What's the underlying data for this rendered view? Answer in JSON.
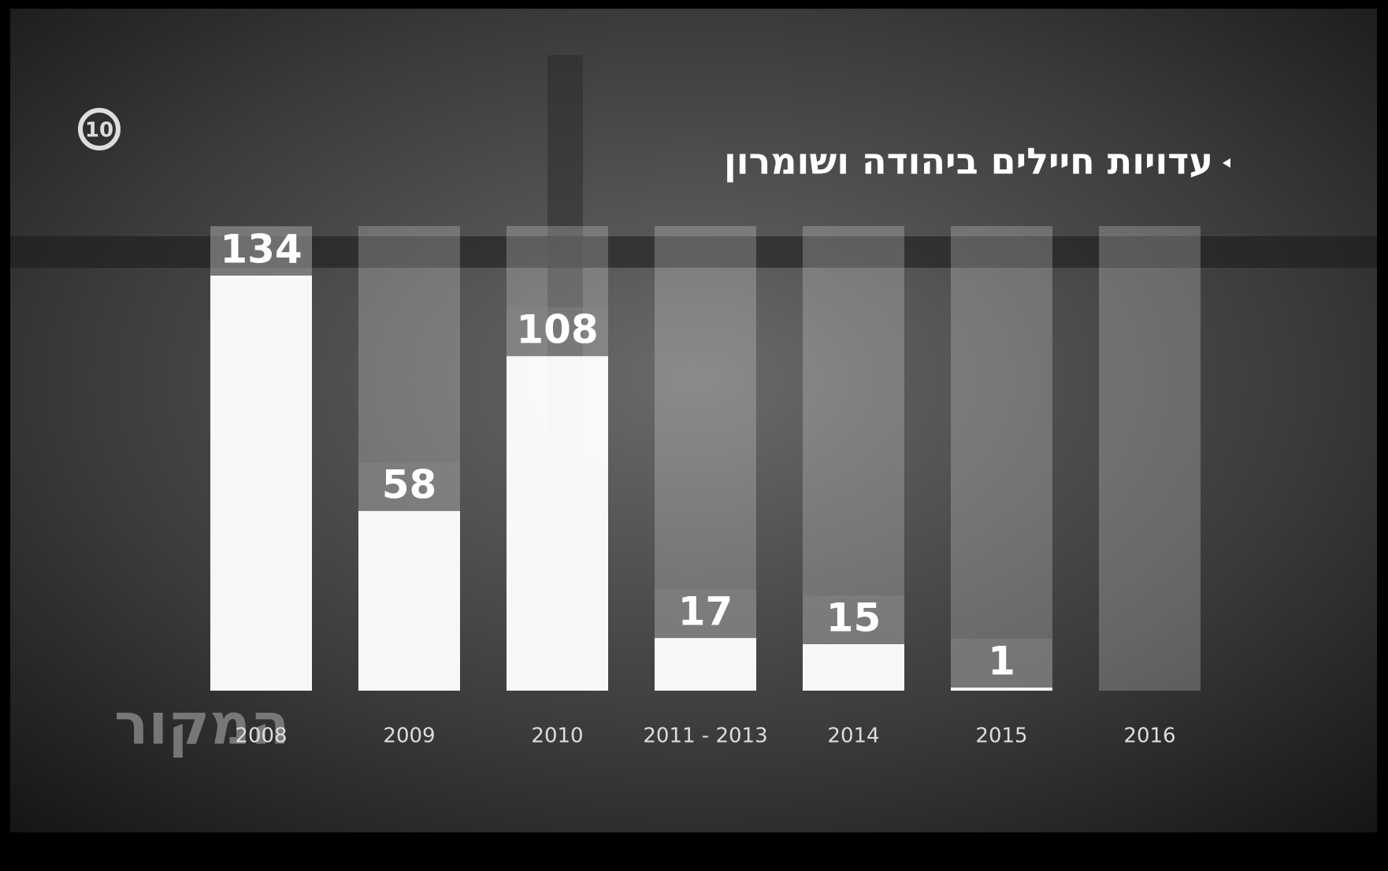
{
  "branding": {
    "channel": "10",
    "show": "המקור"
  },
  "chart_data": {
    "type": "bar",
    "title": "עדויות חיילים ביהודה ושומרון",
    "categories": [
      "2008",
      "2009",
      "2010",
      "2011 - 2013",
      "2014",
      "2015",
      "2016"
    ],
    "values": [
      134,
      58,
      108,
      17,
      15,
      1,
      null
    ],
    "color": "#ffffff",
    "ylim": [
      0,
      150
    ]
  }
}
